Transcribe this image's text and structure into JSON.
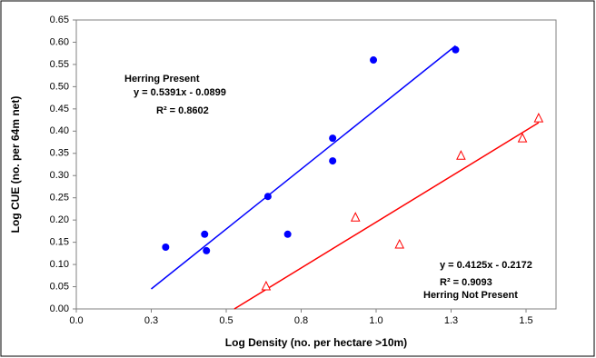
{
  "chart_data": {
    "type": "scatter",
    "x_label": "Log Density (no. per hectare >10m)",
    "y_label": "Log CUE (no. per 64m net)",
    "xlim": [
      0,
      1.6
    ],
    "xticks": [
      {
        "value": 0,
        "label": "0.0"
      },
      {
        "value": 0.25,
        "label": "0.3"
      },
      0.5,
      {
        "value": 0.75,
        "label": "0.8"
      },
      {
        "value": 1,
        "label": "1.0"
      },
      {
        "value": 1.25,
        "label": "1.3"
      },
      1.5
    ],
    "ylim": [
      0,
      0.65
    ],
    "yticks": [
      {
        "value": 0,
        "label": "0.00"
      },
      0.05,
      {
        "value": 0.1,
        "label": "0.10"
      },
      0.15,
      {
        "value": 0.2,
        "label": "0.20"
      },
      0.25,
      {
        "value": 0.3,
        "label": "0.30"
      },
      0.35,
      {
        "value": 0.4,
        "label": "0.40"
      },
      0.45,
      {
        "value": 0.5,
        "label": "0.50"
      },
      0.55,
      {
        "value": 0.6,
        "label": "0.60"
      },
      0.65
    ],
    "grid": false,
    "series": [
      {
        "name": "Herring Present",
        "color": "#0000ff",
        "marker": "circle",
        "x": [
          0.298,
          0.428,
          0.434,
          0.639,
          0.705,
          0.855,
          0.855,
          0.991,
          1.265
        ],
        "values": [
          0.139,
          0.168,
          0.131,
          0.253,
          0.168,
          0.384,
          0.333,
          0.56,
          0.583
        ],
        "trendline": {
          "x": [
            0.25,
            1.265
          ],
          "y": [
            0.045,
            0.592
          ]
        },
        "equation": "y = 0.5391x - 0.0899",
        "r2": "R² = 0.8602"
      },
      {
        "name": "Herring Not Present",
        "color": "#ff0000",
        "marker": "triangle",
        "x": [
          0.633,
          0.931,
          1.078,
          1.283,
          1.488,
          1.542
        ],
        "values": [
          0.051,
          0.206,
          0.145,
          0.345,
          0.384,
          0.429
        ],
        "trendline": {
          "x": [
            0.527,
            1.542
          ],
          "y": [
            0,
            0.419
          ]
        },
        "equation": "y = 0.4125x - 0.2172",
        "r2": "R² = 0.9093"
      }
    ]
  }
}
